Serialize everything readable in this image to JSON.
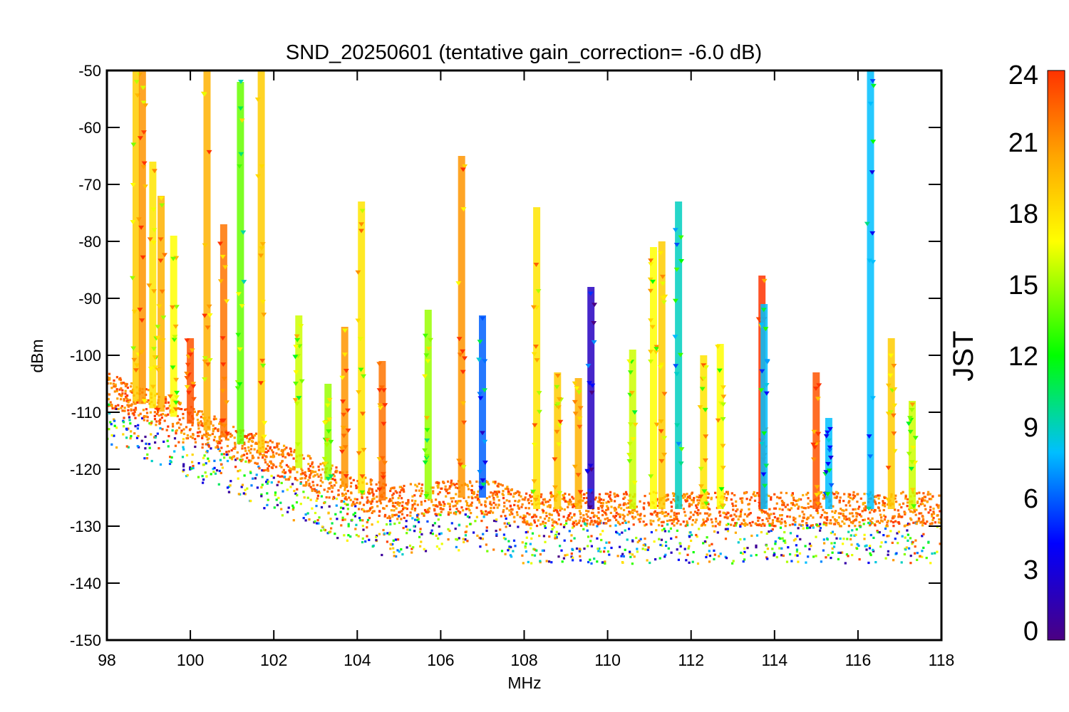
{
  "chart_data": {
    "type": "scatter",
    "title": "SND_20250601 (tentative gain_correction= -6.0 dB)",
    "xlabel": "MHz",
    "ylabel": "dBm",
    "xlim": [
      98,
      118
    ],
    "ylim": [
      -150,
      -50
    ],
    "x_ticks": [
      98,
      100,
      102,
      104,
      106,
      108,
      110,
      112,
      114,
      116,
      118
    ],
    "y_ticks": [
      -50,
      -60,
      -70,
      -80,
      -90,
      -100,
      -110,
      -120,
      -130,
      -140,
      -150
    ],
    "grid": false,
    "colorbar": {
      "label": "JST",
      "range": [
        0,
        24
      ],
      "ticks": [
        0,
        3,
        6,
        9,
        12,
        15,
        18,
        21,
        24
      ],
      "colors": [
        "#4b0082",
        "#0000ff",
        "#00bfff",
        "#00ff00",
        "#ffff00",
        "#ffa500",
        "#ff3300"
      ]
    },
    "noise_floor": {
      "points": [
        [
          98,
          -106
        ],
        [
          100,
          -112
        ],
        [
          102,
          -118
        ],
        [
          104,
          -124
        ],
        [
          104.8,
          -126
        ],
        [
          106,
          -125
        ],
        [
          107.4,
          -125
        ],
        [
          107.6,
          -126
        ],
        [
          108,
          -127
        ],
        [
          112,
          -127
        ],
        [
          116,
          -127
        ],
        [
          118,
          -127
        ]
      ],
      "spread_db": 6
    },
    "signals": [
      {
        "f": 98.7,
        "top": -50,
        "jst": 19
      },
      {
        "f": 98.85,
        "top": -50,
        "jst": 21
      },
      {
        "f": 99.1,
        "top": -66,
        "jst": 18
      },
      {
        "f": 99.3,
        "top": -72,
        "jst": 20
      },
      {
        "f": 99.6,
        "top": -79,
        "jst": 17
      },
      {
        "f": 100.0,
        "top": -97,
        "jst": 23
      },
      {
        "f": 100.4,
        "top": -50,
        "jst": 20
      },
      {
        "f": 100.8,
        "top": -77,
        "jst": 22
      },
      {
        "f": 101.2,
        "top": -52,
        "jst": 14
      },
      {
        "f": 101.7,
        "top": -50,
        "jst": 19
      },
      {
        "f": 102.6,
        "top": -93,
        "jst": 16
      },
      {
        "f": 103.3,
        "top": -105,
        "jst": 15
      },
      {
        "f": 103.7,
        "top": -95,
        "jst": 21
      },
      {
        "f": 104.1,
        "top": -73,
        "jst": 18
      },
      {
        "f": 104.6,
        "top": -101,
        "jst": 22
      },
      {
        "f": 105.7,
        "top": -92,
        "jst": 15
      },
      {
        "f": 106.5,
        "top": -65,
        "jst": 21
      },
      {
        "f": 107.0,
        "top": -93,
        "jst": 6
      },
      {
        "f": 108.3,
        "top": -74,
        "jst": 18
      },
      {
        "f": 108.8,
        "top": -103,
        "jst": 19
      },
      {
        "f": 109.3,
        "top": -104,
        "jst": 20
      },
      {
        "f": 109.6,
        "top": -88,
        "jst": 2
      },
      {
        "f": 110.6,
        "top": -99,
        "jst": 16
      },
      {
        "f": 111.1,
        "top": -81,
        "jst": 17
      },
      {
        "f": 111.3,
        "top": -80,
        "jst": 19
      },
      {
        "f": 111.7,
        "top": -73,
        "jst": 9
      },
      {
        "f": 112.3,
        "top": -100,
        "jst": 18
      },
      {
        "f": 112.7,
        "top": -98,
        "jst": 17
      },
      {
        "f": 113.7,
        "top": -86,
        "jst": 24
      },
      {
        "f": 113.75,
        "top": -91,
        "jst": 8
      },
      {
        "f": 115.0,
        "top": -103,
        "jst": 23
      },
      {
        "f": 115.3,
        "top": -111,
        "jst": 8
      },
      {
        "f": 116.3,
        "top": -50,
        "jst": 8
      },
      {
        "f": 116.8,
        "top": -97,
        "jst": 19
      },
      {
        "f": 117.3,
        "top": -108,
        "jst": 16
      }
    ],
    "point_count": 3200
  }
}
